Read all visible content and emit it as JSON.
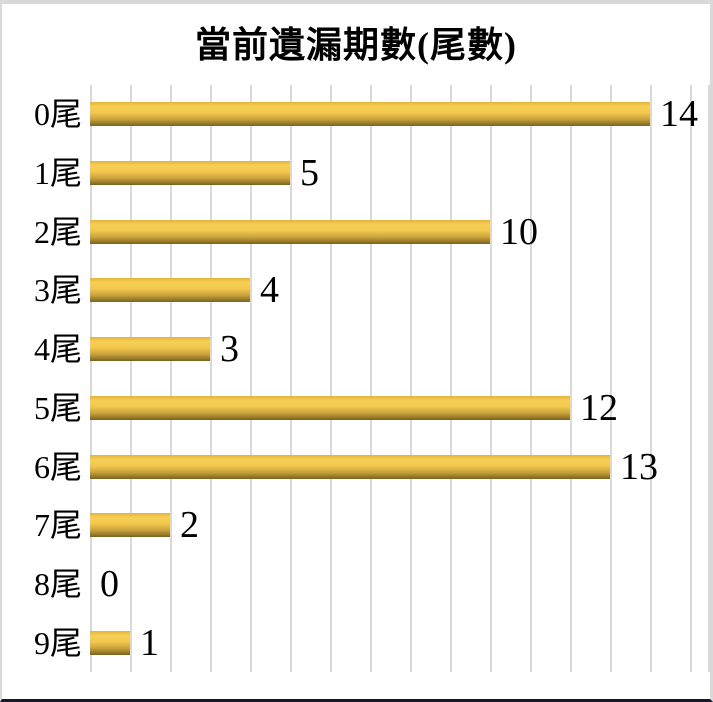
{
  "chart_data": {
    "type": "bar",
    "orientation": "horizontal",
    "title": "當前遺漏期數(尾數)",
    "categories": [
      "0尾",
      "1尾",
      "2尾",
      "3尾",
      "4尾",
      "5尾",
      "6尾",
      "7尾",
      "8尾",
      "9尾"
    ],
    "values": [
      14,
      5,
      10,
      4,
      3,
      12,
      13,
      2,
      0,
      1
    ],
    "xlabel": "",
    "ylabel": "",
    "xlim": [
      0,
      15.5
    ],
    "gridline_interval": 1,
    "grid": true,
    "legend": false,
    "data_labels": true
  },
  "colors": {
    "bar_edge_top": "#e5b33c",
    "bar_highlight": "#f8cf55",
    "bar_mid": "#f2c84e",
    "bar_shade": "#c9a23c",
    "bar_edge_bottom": "#7a621f",
    "gridline": "#d9d9d9",
    "frame_light": "#d9d9d9",
    "frame_dark": "#16162d",
    "text": "#000000",
    "background": "#ffffff"
  }
}
